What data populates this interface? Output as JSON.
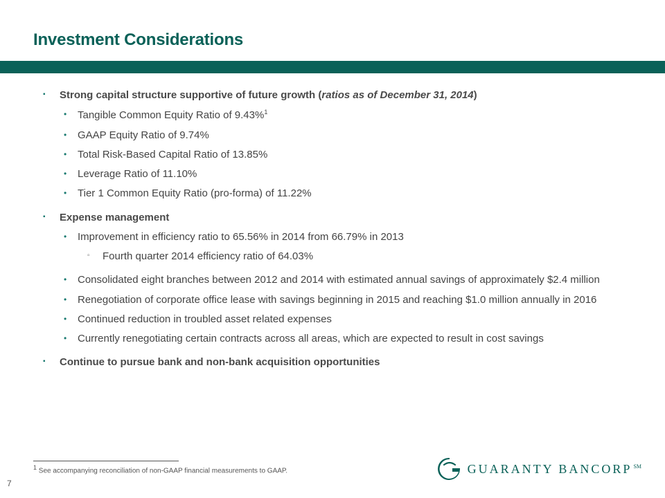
{
  "colors": {
    "brand_teal": "#0a6158",
    "text_gray": "#4a4a4a",
    "bullet_teal": "#1a7a70"
  },
  "title": "Investment Considerations",
  "sections": [
    {
      "head_plain": "Strong capital structure supportive of future growth (",
      "head_paren": "ratios as of December 31, 2014",
      "head_close": ")",
      "subs": [
        {
          "text": "Tangible Common Equity Ratio of 9.43%",
          "sup": "1"
        },
        {
          "text": "GAAP Equity Ratio of 9.74%"
        },
        {
          "text": "Total Risk-Based Capital Ratio of 13.85%"
        },
        {
          "text": "Leverage Ratio of 11.10%"
        },
        {
          "text": "Tier 1 Common Equity Ratio (pro-forma) of 11.22%"
        }
      ]
    },
    {
      "head_plain": "Expense management",
      "subs": [
        {
          "text": "Improvement in efficiency ratio to 65.56% in 2014 from 66.79% in 2013",
          "subsubs": [
            {
              "text": "Fourth quarter 2014 efficiency ratio of  64.03%"
            }
          ]
        },
        {
          "text": "Consolidated eight branches between 2012 and 2014 with estimated annual savings of approximately $2.4 million",
          "gap": true
        },
        {
          "text": "Renegotiation of corporate office lease with savings beginning in 2015 and reaching $1.0 million annually in 2016"
        },
        {
          "text": "Continued reduction in troubled asset related expenses"
        },
        {
          "text": "Currently renegotiating certain contracts across all areas, which are expected to result in cost savings"
        }
      ]
    },
    {
      "head_plain": "Continue to pursue bank and non-bank acquisition opportunities"
    }
  ],
  "footnote_marker": "1",
  "footnote": " See accompanying reconciliation of non-GAAP financial measurements to GAAP.",
  "page_number": "7",
  "logo_text": "GUARANTY BANCORP",
  "logo_sm": "SM"
}
